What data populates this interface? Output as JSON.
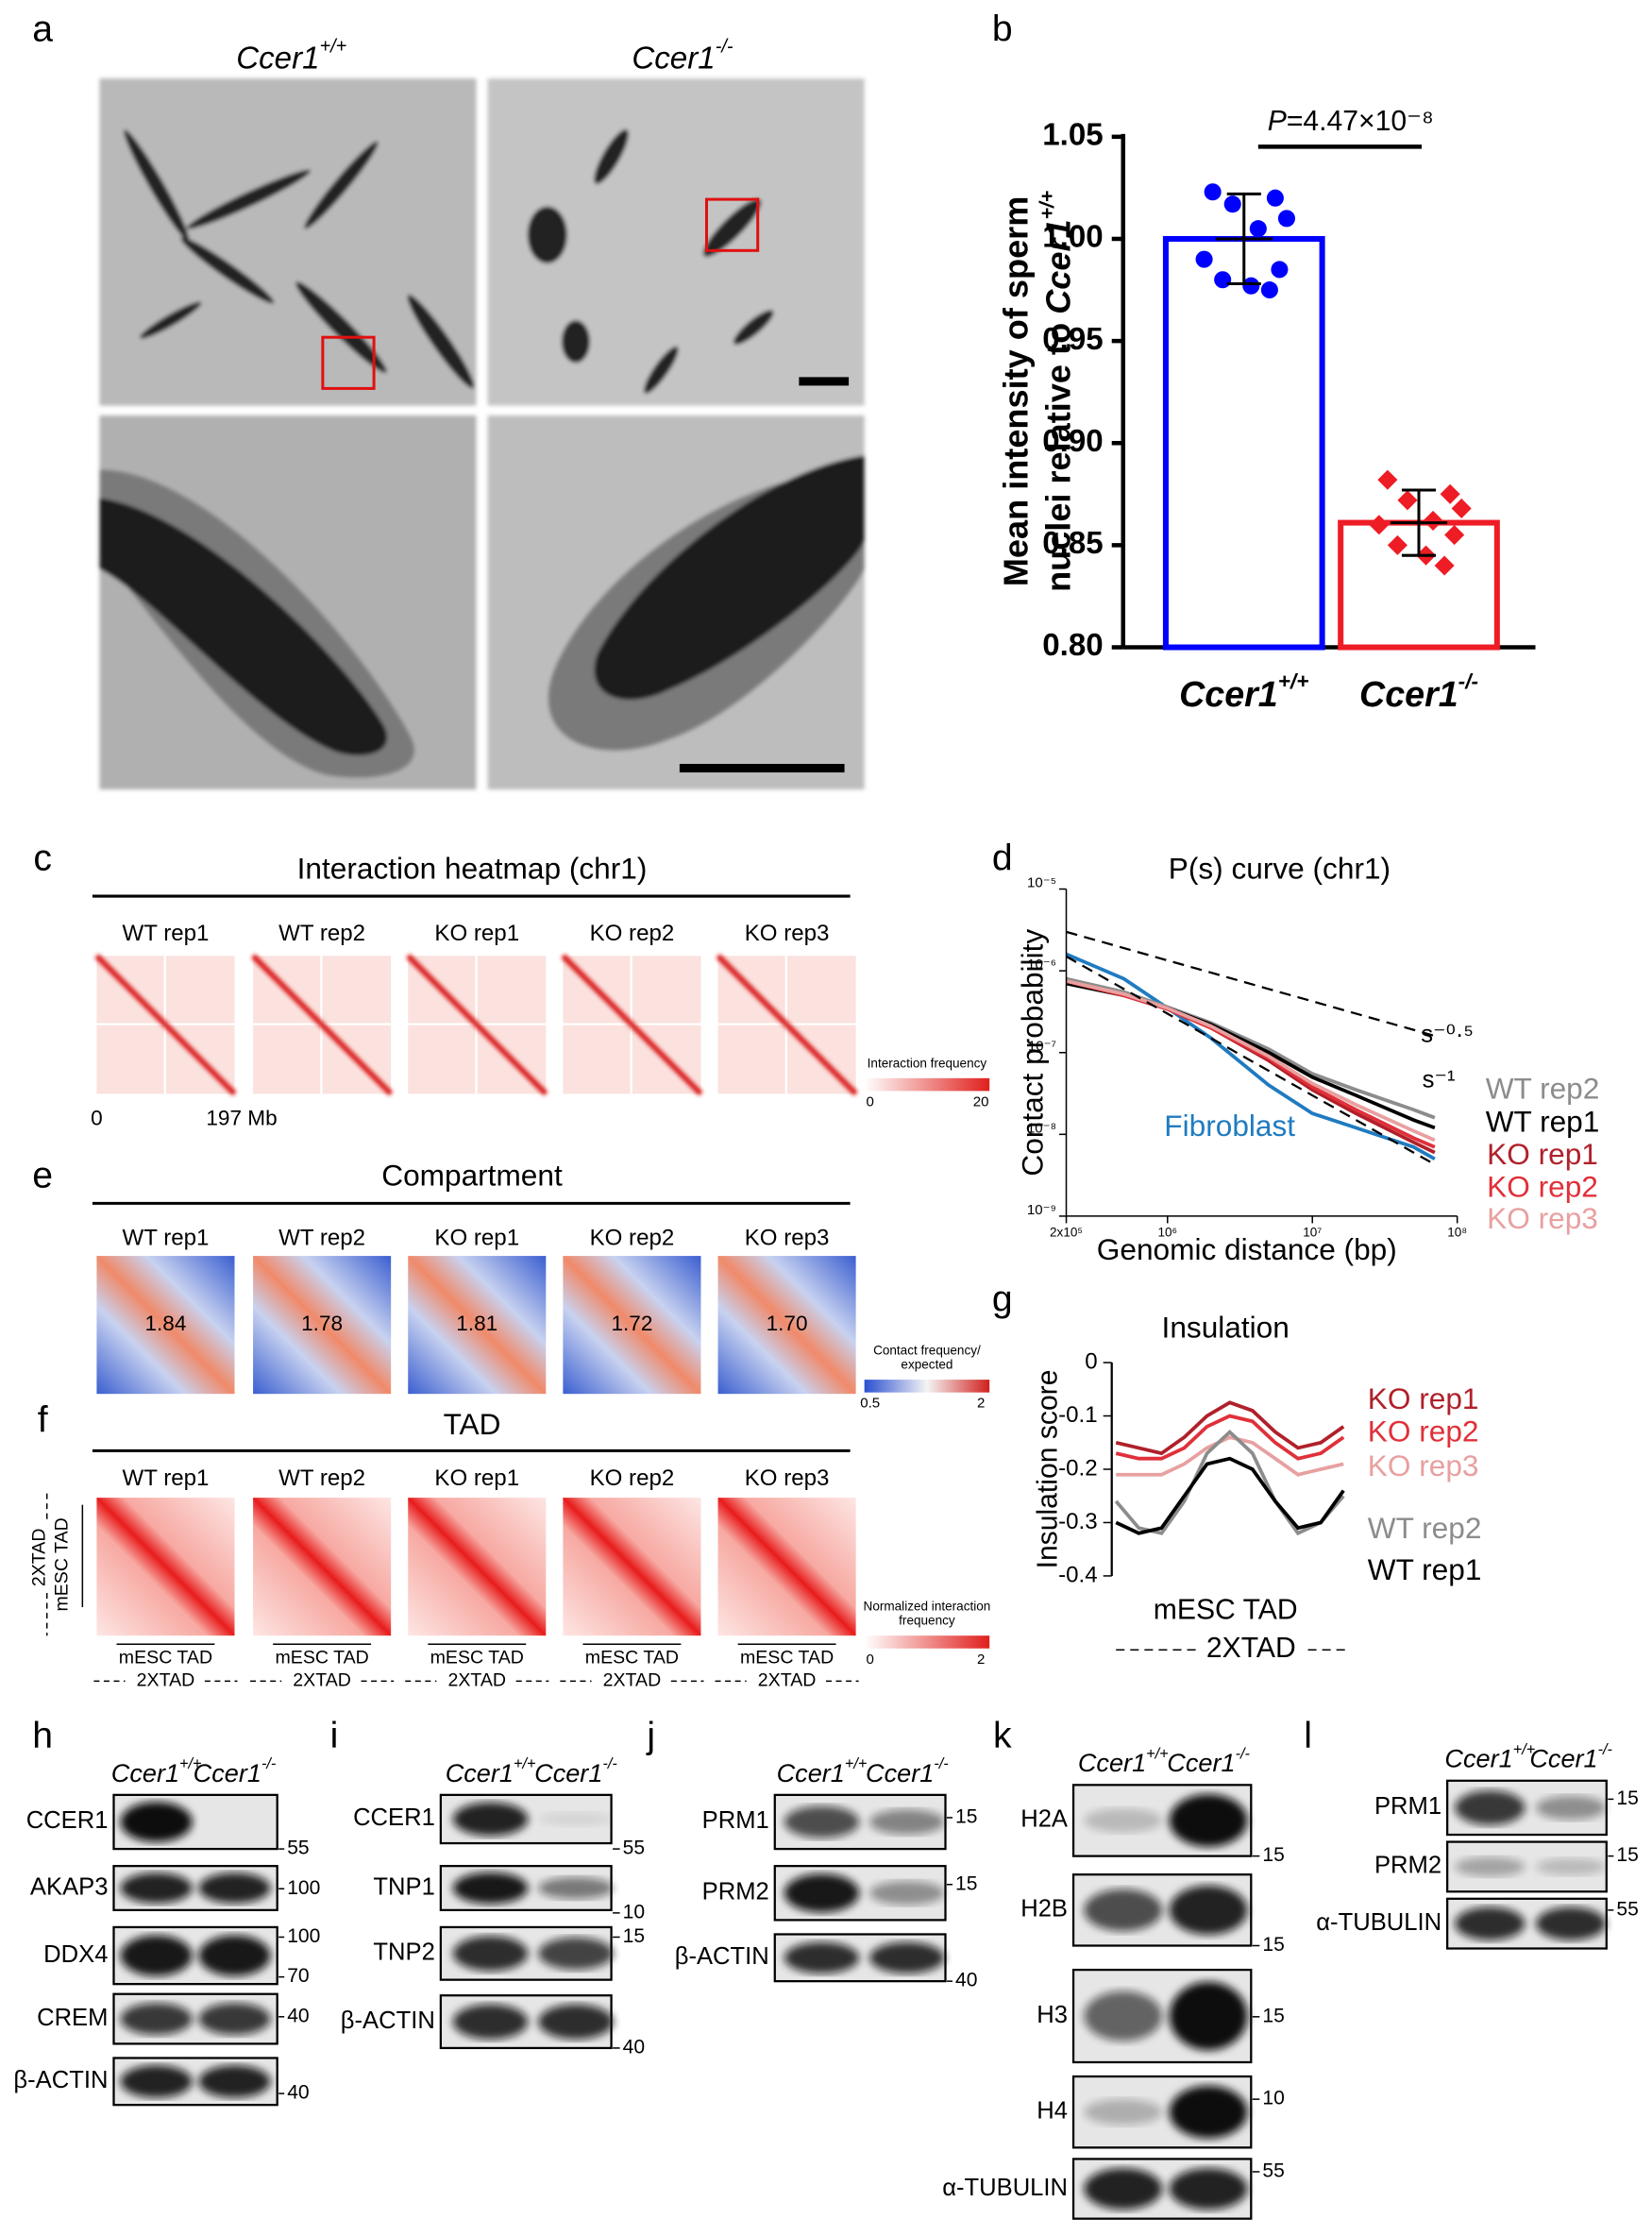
{
  "panel_labels": [
    "a",
    "b",
    "c",
    "d",
    "e",
    "f",
    "g",
    "h",
    "i",
    "j",
    "k",
    "l"
  ],
  "genotypes": [
    {
      "base": "Ccer1",
      "sup": "+/+"
    },
    {
      "base": "Ccer1",
      "sup": "-/-"
    }
  ],
  "heatmaps": {
    "samples": [
      "WT rep1",
      "WT rep2",
      "KO rep1",
      "KO rep2",
      "KO rep3"
    ],
    "c": {
      "title": "Interaction heatmap (chr1)",
      "axis_start": "0",
      "axis_end": "197 Mb",
      "colorbar": {
        "label": [
          "Interaction frequency"
        ],
        "min": "0",
        "max": "20"
      }
    },
    "e": {
      "title": "Compartment",
      "scores": [
        "1.84",
        "1.78",
        "1.81",
        "1.72",
        "1.70"
      ],
      "colorbar": {
        "label": [
          "Contact frequency/",
          "expected"
        ],
        "min": "0.5",
        "max": "2"
      }
    },
    "f": {
      "title": "TAD",
      "inner_label": "mESC TAD",
      "outer_label": "2XTAD",
      "colorbar": {
        "label": [
          "Normalized interaction",
          "frequency"
        ],
        "min": "0",
        "max": "2"
      }
    }
  },
  "blots": {
    "h": [
      {
        "name": "CCER1",
        "markers": [
          "55"
        ]
      },
      {
        "name": "AKAP3",
        "markers": [
          "100"
        ]
      },
      {
        "name": "DDX4",
        "markers": [
          "100",
          "70"
        ]
      },
      {
        "name": "CREM",
        "markers": [
          "40"
        ]
      },
      {
        "name": "β-ACTIN",
        "markers": [
          "40"
        ]
      }
    ],
    "i": [
      {
        "name": "CCER1",
        "markers": [
          "55"
        ]
      },
      {
        "name": "TNP1",
        "markers": [
          "10"
        ]
      },
      {
        "name": "TNP2",
        "markers": [
          "15"
        ]
      },
      {
        "name": "β-ACTIN",
        "markers": [
          "40"
        ]
      }
    ],
    "j": [
      {
        "name": "PRM1",
        "markers": [
          "15"
        ]
      },
      {
        "name": "PRM2",
        "markers": [
          "15"
        ]
      },
      {
        "name": "β-ACTIN",
        "markers": [
          "40"
        ]
      }
    ],
    "k": [
      {
        "name": "H2A",
        "markers": [
          "15"
        ]
      },
      {
        "name": "H2B",
        "markers": [
          "15"
        ]
      },
      {
        "name": "H3",
        "markers": [
          "15"
        ]
      },
      {
        "name": "H4",
        "markers": [
          "10"
        ]
      },
      {
        "name": "α-TUBULIN",
        "markers": [
          "55"
        ]
      }
    ],
    "l": [
      {
        "name": "PRM1",
        "markers": [
          "15"
        ]
      },
      {
        "name": "PRM2",
        "markers": [
          "15"
        ]
      },
      {
        "name": "α-TUBULIN",
        "markers": [
          "55"
        ]
      }
    ]
  },
  "chart_data": [
    {
      "type": "bar",
      "ylabel": [
        "Mean intensity of sperm",
        "nuclei relative to"
      ],
      "categories": [
        {
          "base": "Ccer1",
          "sup": "+/+"
        },
        {
          "base": "Ccer1",
          "sup": "-/-"
        }
      ],
      "values": [
        1.0,
        0.861
      ],
      "errors": [
        0.022,
        0.016
      ],
      "colors": [
        "#0000ff",
        "#ee1c25"
      ],
      "points": [
        [
          1.023,
          1.02,
          1.017,
          1.01,
          1.005,
          0.99,
          0.985,
          0.98,
          0.977,
          0.975
        ],
        [
          0.882,
          0.875,
          0.872,
          0.868,
          0.862,
          0.86,
          0.855,
          0.85,
          0.845,
          0.84
        ]
      ],
      "annotation": [
        "P",
        "=4.47×10⁻⁸"
      ],
      "ylim": [
        0.8,
        1.05
      ],
      "yticks": [
        {
          "value": 0.8,
          "label": "0.80"
        },
        {
          "value": 0.85,
          "label": "0.85"
        },
        {
          "value": 0.9,
          "label": "0.90"
        },
        {
          "value": 0.95,
          "label": "0.95"
        },
        {
          "value": 1,
          "label": "1.00"
        },
        {
          "value": 1.05,
          "label": "1.05"
        }
      ]
    },
    {
      "type": "line",
      "title": "P(s) curve (chr1)",
      "xlabel": "Genomic distance (bp)",
      "ylabel": "Contact probability",
      "log_x": true,
      "log_y": true,
      "x": [
        200000,
        500000,
        1000000,
        2000000,
        5000000,
        10000000,
        20000000,
        50000000,
        70000000
      ],
      "xlim": [
        200000,
        100000000
      ],
      "xticks": [
        {
          "value": 200000,
          "label": "2x10⁵"
        },
        {
          "value": 1000000,
          "label": "10⁶"
        },
        {
          "value": 10000000,
          "label": "10⁷"
        },
        {
          "value": 100000000,
          "label": "10⁸"
        }
      ],
      "ylim": [
        1e-09,
        1e-05
      ],
      "yticks": [
        {
          "value": 1e-09,
          "label": "10⁻⁹"
        },
        {
          "value": 1e-08,
          "label": "10⁻⁸"
        },
        {
          "value": 1e-07,
          "label": "10⁻⁷"
        },
        {
          "value": 1e-06,
          "label": "10⁻⁶"
        },
        {
          "value": 1e-05,
          "label": "10⁻⁵"
        }
      ],
      "series": [
        {
          "name": "Fibroblast",
          "color": "#1f7bc0",
          "values": [
            1.6e-06,
            8e-07,
            3.5e-07,
            1.5e-07,
            4e-08,
            1.8e-08,
            1.2e-08,
            7e-09,
            5e-09
          ]
        },
        {
          "name": "WT rep2",
          "color": "#8c8c8c",
          "values": [
            8e-07,
            5.5e-07,
            3.6e-07,
            2.3e-07,
            1.1e-07,
            5.5e-08,
            3.5e-08,
            2e-08,
            1.6e-08
          ]
        },
        {
          "name": "WT rep1",
          "color": "#000000",
          "values": [
            7e-07,
            5e-07,
            3.5e-07,
            2.2e-07,
            1e-07,
            5e-08,
            3e-08,
            1.5e-08,
            1.2e-08
          ]
        },
        {
          "name": "KO rep1",
          "color": "#b0202a",
          "values": [
            7.5e-07,
            5e-07,
            3.4e-07,
            2e-07,
            8e-08,
            3.5e-08,
            1.8e-08,
            8e-09,
            6e-09
          ]
        },
        {
          "name": "KO rep2",
          "color": "#e0303a",
          "values": [
            7.5e-07,
            5e-07,
            3.4e-07,
            2e-07,
            8.5e-08,
            3.8e-08,
            2e-08,
            9e-09,
            7e-09
          ]
        },
        {
          "name": "KO rep3",
          "color": "#e8a0a0",
          "values": [
            7.5e-07,
            5.2e-07,
            3.5e-07,
            2.1e-07,
            9e-08,
            4.2e-08,
            2.3e-08,
            1.1e-08,
            8.5e-09
          ]
        },
        {
          "name": "s⁻⁰·⁵",
          "color": "#000000",
          "dash": true,
          "values": [
            3e-06,
            1.9e-06,
            1.34e-06,
            9.5e-07,
            6e-07,
            4.24e-07,
            3e-07,
            1.9e-07,
            1.6e-07
          ]
        },
        {
          "name": "s⁻¹",
          "color": "#000000",
          "dash": true,
          "values": [
            1.5e-06,
            6e-07,
            3e-07,
            1.5e-07,
            6e-08,
            3e-08,
            1.5e-08,
            6e-09,
            4.3e-09
          ]
        }
      ]
    },
    {
      "type": "line",
      "title": "Insulation",
      "ylabel": "Insulation score",
      "xlabel": "mESC TAD",
      "xspan_label": "2XTAD",
      "ylim": [
        -0.4,
        0
      ],
      "yticks": [
        0,
        -0.1,
        -0.2,
        -0.3,
        -0.4
      ],
      "series": [
        {
          "name": "KO rep1",
          "color": "#b0202a",
          "values": [
            -0.15,
            -0.16,
            -0.17,
            -0.14,
            -0.1,
            -0.075,
            -0.09,
            -0.13,
            -0.16,
            -0.15,
            -0.12
          ]
        },
        {
          "name": "KO rep2",
          "color": "#e0303a",
          "values": [
            -0.17,
            -0.18,
            -0.18,
            -0.16,
            -0.12,
            -0.1,
            -0.11,
            -0.15,
            -0.18,
            -0.17,
            -0.14
          ]
        },
        {
          "name": "KO rep3",
          "color": "#e8a0a0",
          "values": [
            -0.21,
            -0.21,
            -0.21,
            -0.19,
            -0.16,
            -0.14,
            -0.15,
            -0.18,
            -0.21,
            -0.2,
            -0.19
          ]
        },
        {
          "name": "WT rep2",
          "color": "#8c8c8c",
          "values": [
            -0.26,
            -0.31,
            -0.32,
            -0.26,
            -0.17,
            -0.13,
            -0.17,
            -0.26,
            -0.32,
            -0.3,
            -0.25
          ]
        },
        {
          "name": "WT rep1",
          "color": "#000000",
          "values": [
            -0.3,
            -0.32,
            -0.31,
            -0.25,
            -0.19,
            -0.18,
            -0.2,
            -0.26,
            -0.31,
            -0.3,
            -0.24
          ]
        }
      ]
    }
  ]
}
